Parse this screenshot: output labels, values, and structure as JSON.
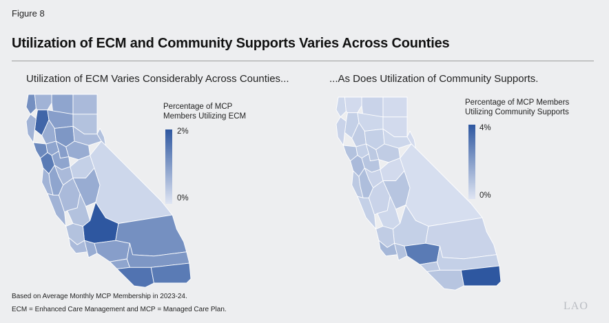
{
  "figure_label": "Figure 8",
  "title": "Utilization of ECM and Community Supports Varies Across Counties",
  "colors": {
    "background": "#edeef0",
    "scale_low": "#dfe5f3",
    "scale_high": "#2e57a0",
    "county_border": "#ffffff",
    "rule": "#9a9a9a",
    "logo": "#b9bcc2"
  },
  "chart_data": [
    {
      "type": "choropleth",
      "title": "Utilization of ECM Varies Considerably Across Counties...",
      "legend": {
        "title_lines": [
          "Percentage of MCP",
          "Members Utilizing ECM"
        ],
        "max_label": "2%",
        "min_label": "0%",
        "range": [
          0,
          2
        ],
        "unit": "percent"
      },
      "regions": [
        {
          "id": "n1",
          "value": 1.2
        },
        {
          "id": "n2",
          "value": 0.7
        },
        {
          "id": "n3",
          "value": 0.9
        },
        {
          "id": "n4",
          "value": 1.8
        },
        {
          "id": "n5",
          "value": 1.0
        },
        {
          "id": "n6",
          "value": 0.6
        },
        {
          "id": "n7",
          "value": 0.5
        },
        {
          "id": "r1",
          "value": 0.7
        },
        {
          "id": "r2",
          "value": 0.8
        },
        {
          "id": "r3",
          "value": 1.1
        },
        {
          "id": "r4",
          "value": 0.6
        },
        {
          "id": "r5",
          "value": 0.5
        },
        {
          "id": "b1",
          "value": 1.3
        },
        {
          "id": "b2",
          "value": 0.9
        },
        {
          "id": "b3",
          "value": 1.0
        },
        {
          "id": "b4",
          "value": 0.8
        },
        {
          "id": "b5",
          "value": 1.5
        },
        {
          "id": "b6",
          "value": 0.9
        },
        {
          "id": "s1",
          "value": 0.7
        },
        {
          "id": "s2",
          "value": 0.6
        },
        {
          "id": "s3",
          "value": 0.9
        },
        {
          "id": "s4",
          "value": 0.3
        },
        {
          "id": "c1",
          "value": 0.7
        },
        {
          "id": "c2",
          "value": 0.6
        },
        {
          "id": "c3",
          "value": 0.8
        },
        {
          "id": "c4",
          "value": 0.5
        },
        {
          "id": "e1",
          "value": 0.2
        },
        {
          "id": "k1",
          "value": 2.0
        },
        {
          "id": "sl",
          "value": 0.5
        },
        {
          "id": "sb",
          "value": 0.6
        },
        {
          "id": "sbd",
          "value": 1.2
        },
        {
          "id": "vn",
          "value": 0.8
        },
        {
          "id": "la",
          "value": 1.0
        },
        {
          "id": "or",
          "value": 0.9
        },
        {
          "id": "rv",
          "value": 1.1
        },
        {
          "id": "sd",
          "value": 1.6
        },
        {
          "id": "im",
          "value": 1.5
        }
      ]
    },
    {
      "type": "choropleth",
      "title": "...As Does Utilization of Community Supports.",
      "legend": {
        "title_lines": [
          "Percentage of MCP Members",
          "Utilizing Community Supports"
        ],
        "max_label": "4%",
        "min_label": "0%",
        "range": [
          0,
          4
        ],
        "unit": "percent"
      },
      "regions": [
        {
          "id": "n1",
          "value": 0.4
        },
        {
          "id": "n2",
          "value": 0.3
        },
        {
          "id": "n3",
          "value": 0.5
        },
        {
          "id": "n4",
          "value": 0.6
        },
        {
          "id": "n5",
          "value": 0.4
        },
        {
          "id": "n6",
          "value": 0.3
        },
        {
          "id": "n7",
          "value": 0.3
        },
        {
          "id": "r1",
          "value": 0.5
        },
        {
          "id": "r2",
          "value": 0.7
        },
        {
          "id": "r3",
          "value": 0.6
        },
        {
          "id": "r4",
          "value": 0.4
        },
        {
          "id": "r5",
          "value": 0.3
        },
        {
          "id": "b1",
          "value": 1.0
        },
        {
          "id": "b2",
          "value": 0.6
        },
        {
          "id": "b3",
          "value": 0.8
        },
        {
          "id": "b4",
          "value": 0.7
        },
        {
          "id": "b5",
          "value": 1.2
        },
        {
          "id": "b6",
          "value": 0.9
        },
        {
          "id": "s1",
          "value": 0.8
        },
        {
          "id": "s2",
          "value": 0.5
        },
        {
          "id": "s3",
          "value": 1.1
        },
        {
          "id": "s4",
          "value": 0.3
        },
        {
          "id": "c1",
          "value": 0.6
        },
        {
          "id": "c2",
          "value": 0.5
        },
        {
          "id": "c3",
          "value": 0.9
        },
        {
          "id": "c4",
          "value": 0.4
        },
        {
          "id": "e1",
          "value": 0.2
        },
        {
          "id": "k1",
          "value": 0.6
        },
        {
          "id": "sl",
          "value": 0.7
        },
        {
          "id": "sb",
          "value": 1.3
        },
        {
          "id": "sbd",
          "value": 0.5
        },
        {
          "id": "vn",
          "value": 1.0
        },
        {
          "id": "la",
          "value": 3.0
        },
        {
          "id": "or",
          "value": 0.8
        },
        {
          "id": "rv",
          "value": 0.6
        },
        {
          "id": "sd",
          "value": 0.9
        },
        {
          "id": "im",
          "value": 4.0
        }
      ]
    }
  ],
  "footnotes": [
    "Based on Average Monthly MCP Membership in 2023-24.",
    "ECM = Enhanced Care Management and MCP = Managed Care Plan."
  ],
  "logo_text": "LAO"
}
